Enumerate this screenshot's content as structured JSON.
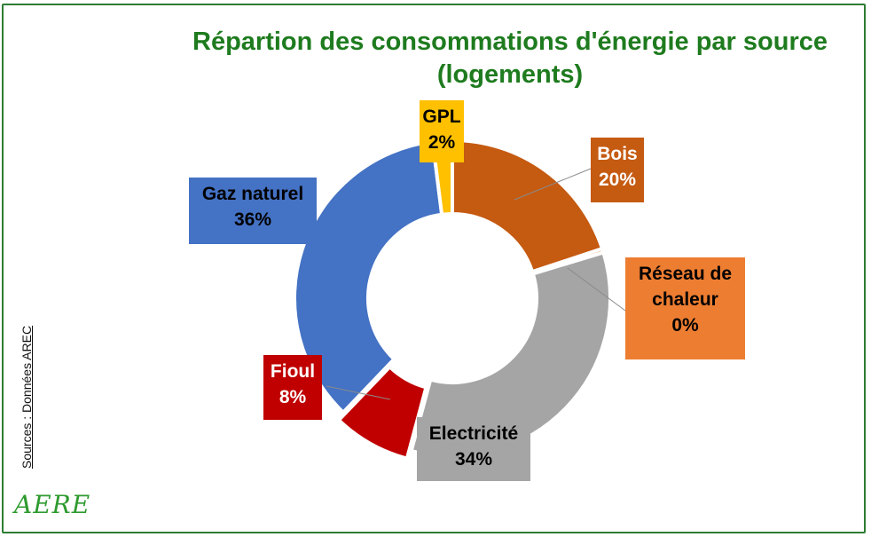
{
  "chart_data": {
    "type": "donut",
    "title": [
      "Répartion des consommations d'énergie par source",
      "(logements)"
    ],
    "source": "Sources : Données AREC",
    "logo": "AERE",
    "categories": [
      "Bois",
      "Réseau de chaleur",
      "Electricité",
      "Fioul",
      "Gaz naturel",
      "GPL"
    ],
    "values": [
      20,
      0.4,
      34,
      8,
      36,
      2
    ],
    "value_labels": [
      "20%",
      "0%",
      "34%",
      "8%",
      "36%",
      "2%"
    ],
    "colors": [
      "#c55a11",
      "#ed7d31",
      "#a5a5a5",
      "#c00000",
      "#4472c4",
      "#ffc000"
    ],
    "label_text_colors": [
      "#ffffff",
      "#000000",
      "#000000",
      "#ffffff",
      "#000000",
      "#000000"
    ]
  }
}
